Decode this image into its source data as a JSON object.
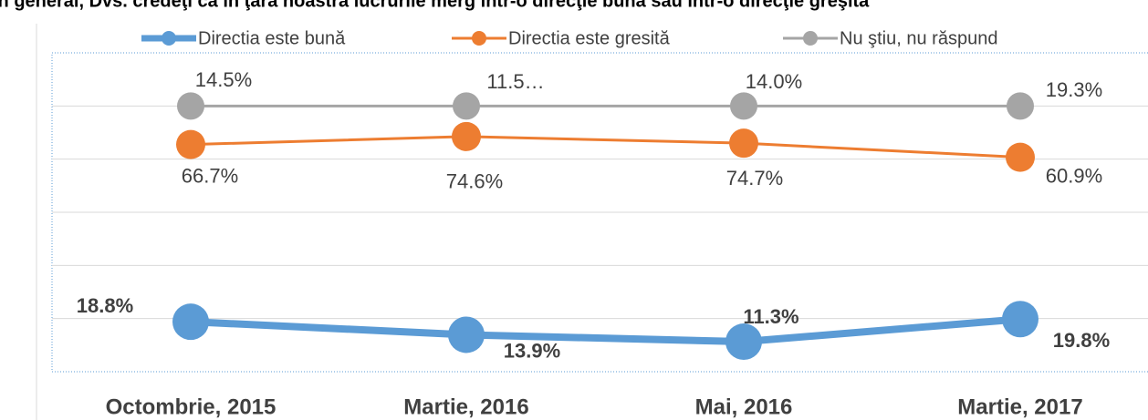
{
  "chart_data": {
    "type": "line",
    "stacked": true,
    "title": "În general, Dvs. credeţi că în ţara noastră lucrurile merg într-o direcţie bună sau într-o direcţie greşită",
    "categories": [
      "Octombrie, 2015",
      "Martie, 2016",
      "Mai, 2016",
      "Martie, 2017"
    ],
    "series": [
      {
        "name": "Directia este bună",
        "color": "#5b9bd5",
        "values": [
          18.8,
          13.9,
          11.3,
          19.8
        ],
        "value_labels": [
          "18.8%",
          "13.9%",
          "11.3%",
          "19.8%"
        ]
      },
      {
        "name": "Directia este gresită",
        "color": "#ed7d31",
        "values": [
          66.7,
          74.6,
          74.7,
          60.9
        ],
        "value_labels": [
          "66.7%",
          "74.6%",
          "74.7%",
          "60.9%"
        ]
      },
      {
        "name": "Nu ştiu, nu răspund",
        "color": "#a5a5a5",
        "values": [
          14.5,
          11.5,
          14.0,
          19.3
        ],
        "value_labels": [
          "14.5%",
          "11.5…",
          "14.0%",
          "19.3%"
        ]
      }
    ],
    "ylim": [
      0,
      120
    ],
    "yticks": [
      0,
      20,
      40,
      60,
      80,
      100,
      120
    ],
    "grid": true,
    "legend": "top"
  }
}
